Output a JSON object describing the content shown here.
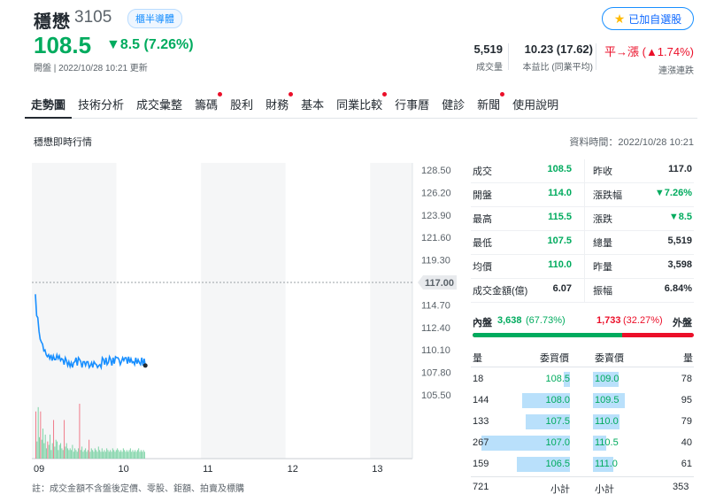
{
  "header": {
    "name": "穩懋",
    "code": "3105",
    "tag": "櫃半導體",
    "watch_label": "已加自選股",
    "price": "108.5",
    "change": "▼8.5 (7.26%)",
    "status": "開盤 | 2022/10/28 10:21 更新",
    "volume": "5,519",
    "volume_label": "成交量",
    "pe": "10.23 (17.62)",
    "pe_label": "本益比 (同業平均)",
    "streak_prefix": "平→漲",
    "streak_value": "(▲1.74%)",
    "streak_label": "連漲連跌",
    "colors": {
      "up": "#eb0f29",
      "down": "#00ab5e",
      "accent": "#188fff"
    }
  },
  "tabs": [
    {
      "label": "走勢圖",
      "active": true,
      "dot": false
    },
    {
      "label": "技術分析",
      "active": false,
      "dot": false
    },
    {
      "label": "成交彙整",
      "active": false,
      "dot": false
    },
    {
      "label": "籌碼",
      "active": false,
      "dot": true
    },
    {
      "label": "股利",
      "active": false,
      "dot": false
    },
    {
      "label": "財務",
      "active": false,
      "dot": true
    },
    {
      "label": "基本",
      "active": false,
      "dot": false
    },
    {
      "label": "同業比較",
      "active": false,
      "dot": true
    },
    {
      "label": "行事曆",
      "active": false,
      "dot": false
    },
    {
      "label": "健診",
      "active": false,
      "dot": false
    },
    {
      "label": "新聞",
      "active": false,
      "dot": true
    },
    {
      "label": "使用說明",
      "active": false,
      "dot": false
    }
  ],
  "section": {
    "title": "穩懋即時行情",
    "data_time": "資料時間：2022/10/28 10:21"
  },
  "chart_data": {
    "type": "line",
    "y_ticks": [
      "128.50",
      "126.20",
      "123.90",
      "121.60",
      "119.30",
      "117.00",
      "114.70",
      "112.40",
      "110.10",
      "107.80",
      "105.50"
    ],
    "ylim": [
      105.5,
      128.5
    ],
    "reference_price": "117.00",
    "x_ticks": [
      "09",
      "10",
      "11",
      "12",
      "13"
    ],
    "series": [
      {
        "values": [
          115.8,
          113.6,
          113.4,
          112.0,
          111.2,
          110.9,
          110.7,
          110.0,
          110.1,
          109.6,
          109.4,
          109.6,
          109.2,
          109.6,
          109.0,
          109.5,
          109.1,
          109.1,
          109.6,
          109.2,
          109.5,
          109.0,
          109.2,
          109.1,
          108.6,
          109.3,
          109.0,
          108.5,
          108.9,
          108.4,
          108.8,
          108.3,
          108.8,
          108.9,
          109.3,
          108.5,
          109.3,
          109.1,
          108.9,
          108.3,
          108.9,
          108.9,
          108.5,
          108.9,
          108.9,
          108.3,
          108.5,
          108.8,
          108.3,
          108.9,
          108.7,
          108.6,
          108.3,
          108.5,
          108.6,
          108.3,
          109.3,
          109.1,
          108.6,
          109.3,
          108.6,
          108.8,
          109.4,
          109.1,
          108.5,
          109.3,
          108.7,
          109.4,
          109.3,
          109.3,
          109.1,
          108.6,
          108.9,
          109.3,
          109.0,
          109.3,
          109.3,
          108.7,
          109.4,
          108.8,
          109.2,
          108.8,
          108.9,
          108.6,
          109.3,
          108.7,
          109.1,
          108.8,
          108.6,
          109.3,
          108.5,
          109.2,
          108.5
        ]
      }
    ],
    "volumes": [
      55,
      20,
      60,
      25,
      55,
      22,
      35,
      18,
      28,
      12,
      20,
      16,
      28,
      10,
      18,
      45,
      14,
      22,
      20,
      10,
      16,
      18,
      12,
      10,
      45,
      14,
      18,
      12,
      10,
      12,
      10,
      16,
      8,
      12,
      10,
      8,
      12,
      64,
      10,
      14,
      8,
      10,
      12,
      8,
      10,
      22,
      8,
      12,
      10,
      8,
      12,
      10,
      8,
      14,
      10,
      8,
      12,
      8,
      10,
      8,
      12,
      10,
      8,
      10,
      8,
      12,
      10,
      8,
      10,
      12,
      10,
      8,
      10,
      8,
      12,
      10,
      8,
      10,
      8,
      10,
      12,
      8,
      10,
      8,
      10,
      8,
      10,
      12,
      8,
      10,
      8,
      10,
      8
    ],
    "volume_colors_up_idx": [
      0,
      4,
      10,
      15,
      24,
      37,
      45
    ],
    "grid": true
  },
  "note": "註：成交金額不含盤後定價、零股、鉅額、拍賣及標購",
  "quote": {
    "rows": [
      {
        "l1": "成交",
        "v1": "108.5",
        "c1": "green",
        "l2": "昨收",
        "v2": "117.0",
        "c2": "dark"
      },
      {
        "l1": "開盤",
        "v1": "114.0",
        "c1": "green",
        "l2": "漲跌幅",
        "v2": "▼7.26%",
        "c2": "green"
      },
      {
        "l1": "最高",
        "v1": "115.5",
        "c1": "green",
        "l2": "漲跌",
        "v2": "▼8.5",
        "c2": "green"
      },
      {
        "l1": "最低",
        "v1": "107.5",
        "c1": "green",
        "l2": "總量",
        "v2": "5,519",
        "c2": "dark"
      },
      {
        "l1": "均價",
        "v1": "110.0",
        "c1": "green",
        "l2": "昨量",
        "v2": "3,598",
        "c2": "dark"
      },
      {
        "l1": "成交金額(億)",
        "v1": "6.07",
        "c1": "dark",
        "l2": "振幅",
        "v2": "6.84%",
        "c2": "dark"
      }
    ]
  },
  "inner_outer": {
    "inner_label": "內盤",
    "inner_value": "3,638",
    "inner_pct": "(67.73%)",
    "inner_fraction": 0.6773,
    "outer_value": "1,733",
    "outer_pct": "(32.27%)",
    "outer_label": "外盤"
  },
  "orderbook": {
    "headers": {
      "bid_qty": "量",
      "bid_price": "委買價",
      "ask_price": "委賣價",
      "ask_qty": "量"
    },
    "rows": [
      {
        "bid_qty": "18",
        "bid_price": "108.5",
        "ask_price": "109.0",
        "ask_qty": "78",
        "bid_frac": 0.07,
        "ask_frac": 0.29
      },
      {
        "bid_qty": "144",
        "bid_price": "108.0",
        "ask_price": "109.5",
        "ask_qty": "95",
        "bid_frac": 0.54,
        "ask_frac": 0.36
      },
      {
        "bid_qty": "133",
        "bid_price": "107.5",
        "ask_price": "110.0",
        "ask_qty": "79",
        "bid_frac": 0.5,
        "ask_frac": 0.3
      },
      {
        "bid_qty": "267",
        "bid_price": "107.0",
        "ask_price": "110.5",
        "ask_qty": "40",
        "bid_frac": 1.0,
        "ask_frac": 0.15
      },
      {
        "bid_qty": "159",
        "bid_price": "106.5",
        "ask_price": "111.0",
        "ask_qty": "61",
        "bid_frac": 0.6,
        "ask_frac": 0.23
      }
    ],
    "bid_total": "721",
    "bid_total_label": "小計",
    "ask_total_label": "小計",
    "ask_total": "353"
  }
}
